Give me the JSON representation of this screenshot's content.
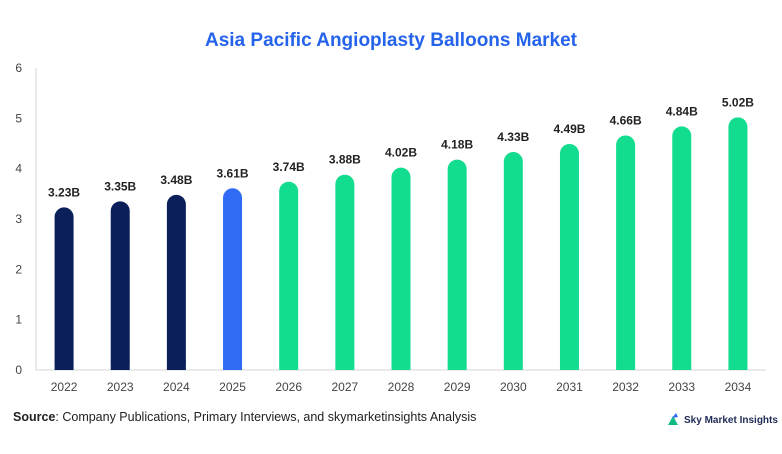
{
  "title": "Asia Pacific Angioplasty Balloons Market",
  "source": {
    "label": "Source",
    "text": ": Company Publications, Primary Interviews, and skymarketinsights Analysis"
  },
  "brand": {
    "name": "Sky Market Insights",
    "icon": "logo-icon"
  },
  "colors": {
    "historical": "#0b1f5b",
    "base_year": "#2f6bf5",
    "forecast": "#12dc8e",
    "title": "#2563eb"
  },
  "chart_data": {
    "type": "bar",
    "title": "Asia Pacific Angioplasty Balloons Market",
    "xlabel": "",
    "ylabel": "",
    "ylim": [
      0,
      6
    ],
    "yticks": [
      "0",
      "1",
      "2",
      "3",
      "4",
      "5",
      "6"
    ],
    "grid": false,
    "categories": [
      "2022",
      "2023",
      "2024",
      "2025",
      "2026",
      "2027",
      "2028",
      "2029",
      "2030",
      "2031",
      "2032",
      "2033",
      "2034"
    ],
    "values": [
      3.23,
      3.35,
      3.48,
      3.61,
      3.74,
      3.88,
      4.02,
      4.18,
      4.33,
      4.49,
      4.66,
      4.84,
      5.02
    ],
    "labels": [
      "3.23B",
      "3.35B",
      "3.48B",
      "3.61B",
      "3.74B",
      "3.88B",
      "4.02B",
      "4.18B",
      "4.33B",
      "4.49B",
      "4.66B",
      "4.84B",
      "5.02B"
    ],
    "bar_groups": [
      "historical",
      "historical",
      "historical",
      "base_year",
      "forecast",
      "forecast",
      "forecast",
      "forecast",
      "forecast",
      "forecast",
      "forecast",
      "forecast",
      "forecast"
    ]
  }
}
